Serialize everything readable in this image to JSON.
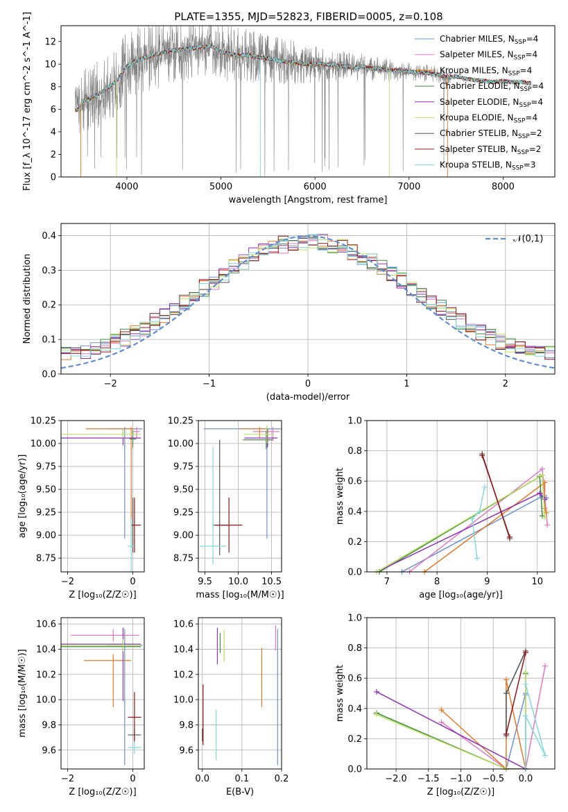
{
  "figure": {
    "title": "PLATE=1355, MJD=52823, FIBERID=0005, z=0.108"
  },
  "colors": {
    "Chabrier MILES": "#6a8fd8",
    "Salpeter MILES": "#e377c2",
    "Kroupa MILES": "#e87722",
    "Chabrier ELODIE": "#3e8a3e",
    "Salpeter ELODIE": "#8e2fb8",
    "Kroupa ELODIE": "#b8e05a",
    "Chabrier STELIB": "#505050",
    "Salpeter STELIB": "#9b1111",
    "Kroupa STELIB": "#7fd8de",
    "normal": "#5b8ed6",
    "grid": "#b0b0b0",
    "data": "#808080"
  },
  "chart_data": [
    {
      "id": "spectrum",
      "type": "line",
      "xlabel": "wavelength [Angstrom, rest frame]",
      "ylabel": "Flux [f_λ 10^-17 erg cm^-2 s^-1 A^-1]",
      "xlim": [
        3300,
        8550
      ],
      "ylim": [
        0,
        13.4
      ],
      "xticks": [
        4000,
        5000,
        6000,
        7000,
        8000
      ],
      "yticks": [
        0,
        2,
        4,
        6,
        8,
        10,
        12
      ],
      "grid": false,
      "legend_position": "right",
      "legend": [
        {
          "label": "Chabrier MILES, N_SSP=4",
          "color_key": "Chabrier MILES"
        },
        {
          "label": "Salpeter MILES, N_SSP=4",
          "color_key": "Salpeter MILES"
        },
        {
          "label": "Kroupa MILES, N_SSP=4",
          "color_key": "Kroupa MILES"
        },
        {
          "label": "Chabrier ELODIE, N_SSP=4",
          "color_key": "Chabrier ELODIE"
        },
        {
          "label": "Salpeter ELODIE, N_SSP=4",
          "color_key": "Salpeter ELODIE"
        },
        {
          "label": "Kroupa ELODIE, N_SSP=4",
          "color_key": "Kroupa ELODIE"
        },
        {
          "label": "Chabrier STELIB, N_SSP=2",
          "color_key": "Chabrier STELIB"
        },
        {
          "label": "Salpeter STELIB, N_SSP=2",
          "color_key": "Salpeter STELIB"
        },
        {
          "label": "Kroupa STELIB, N_SSP=3",
          "color_key": "Kroupa STELIB"
        }
      ],
      "continuum": {
        "x": [
          3450,
          3600,
          3750,
          3900,
          4000,
          4100,
          4200,
          4300,
          4400,
          4500,
          4600,
          4700,
          4800,
          4900,
          5000,
          5100,
          5200,
          5300,
          5400,
          5500,
          5600,
          5700,
          5800,
          5900,
          6000,
          6100,
          6200,
          6300,
          6400,
          6500,
          6600,
          6700,
          6800,
          6900,
          7000,
          7100,
          7200,
          7300,
          7400,
          7500,
          7600,
          7700,
          7800,
          7900,
          8000,
          8100,
          8200,
          8300
        ],
        "y": [
          6.5,
          6.9,
          7.6,
          8.6,
          9.8,
          10.3,
          10.6,
          10.8,
          11.1,
          11.2,
          11.3,
          11.4,
          11.5,
          11.6,
          11.1,
          10.9,
          10.8,
          10.8,
          10.6,
          10.5,
          10.3,
          10.2,
          10.1,
          10.0,
          10.0,
          10.0,
          9.9,
          9.8,
          9.7,
          9.8,
          9.6,
          9.6,
          9.4,
          9.5,
          9.3,
          9.3,
          9.2,
          9.1,
          8.8,
          8.9,
          8.7,
          8.6,
          8.5,
          8.4,
          8.5,
          8.4,
          8.4,
          8.3
        ]
      },
      "noise_amplitude": {
        "x": [
          3450,
          3900,
          4500,
          5000,
          5600,
          6000,
          6500,
          7000,
          7400
        ],
        "y": [
          3.0,
          3.2,
          3.0,
          2.6,
          2.2,
          1.6,
          1.2,
          0.9,
          0.7
        ]
      }
    },
    {
      "id": "residual_hist",
      "type": "line",
      "xlabel": "(data-model)/error",
      "ylabel": "Normed distribution",
      "xlim": [
        -2.5,
        2.5
      ],
      "ylim": [
        0,
        0.435
      ],
      "xticks": [
        -2,
        -1,
        0,
        1,
        2
      ],
      "yticks": [
        0.0,
        0.1,
        0.2,
        0.3,
        0.4
      ],
      "grid": true,
      "legend_position": "top-right",
      "legend_label": "𝒩(0,1)",
      "bin_width": 0.1
    },
    {
      "id": "age_vs_Z",
      "type": "scatter",
      "xlabel": "Z [log₁₀(Z/Z☉)]",
      "ylabel": "age  [log₁₀(age/yr)]",
      "xlim": [
        -2.2,
        0.35
      ],
      "ylim": [
        8.6,
        10.25
      ],
      "xticks": [
        -2,
        0
      ],
      "yticks": [
        8.75,
        9.0,
        9.25,
        9.5,
        9.75,
        10.0,
        10.25
      ],
      "grid": true,
      "points": [
        {
          "model": "Chabrier MILES",
          "x": -0.25,
          "y": 10.16,
          "xerr": [
            0.55,
            0.55
          ],
          "yerr": [
            1.2,
            0.02
          ]
        },
        {
          "model": "Salpeter MILES",
          "x": 0.12,
          "y": 10.13,
          "xerr": [
            0.1,
            0.1
          ],
          "yerr": [
            0.08,
            0.05
          ]
        },
        {
          "model": "Kroupa MILES",
          "x": -0.05,
          "y": 10.16,
          "xerr": [
            1.4,
            0.1
          ],
          "yerr": [
            1.3,
            0.02
          ]
        },
        {
          "model": "Chabrier ELODIE",
          "x": 0.0,
          "y": 10.05,
          "xerr": [
            0.1,
            0.1
          ],
          "yerr": [
            0.1,
            0.1
          ]
        },
        {
          "model": "Salpeter ELODIE",
          "x": -0.3,
          "y": 10.06,
          "xerr": [
            1.9,
            0.55
          ],
          "yerr": [
            0.08,
            0.1
          ]
        },
        {
          "model": "Kroupa ELODIE",
          "x": -0.3,
          "y": 10.1,
          "xerr": [
            1.95,
            0.55
          ],
          "yerr": [
            0.04,
            0.06
          ]
        },
        {
          "model": "Chabrier STELIB",
          "x": 0.0,
          "y": 9.11,
          "xerr": [
            0.05,
            0.05
          ],
          "yerr": [
            0.3,
            0.3
          ]
        },
        {
          "model": "Salpeter STELIB",
          "x": 0.05,
          "y": 9.11,
          "xerr": [
            0.1,
            0.2
          ],
          "yerr": [
            0.3,
            0.3
          ]
        },
        {
          "model": "Kroupa STELIB",
          "x": -0.05,
          "y": 8.88,
          "xerr": [
            0.1,
            0.1
          ],
          "yerr": [
            0.3,
            0.3
          ]
        }
      ]
    },
    {
      "id": "age_vs_mass",
      "type": "scatter",
      "xlabel": "mass [log₁₀(M/M☉)]",
      "ylabel": "",
      "xlim": [
        9.4,
        10.65
      ],
      "ylim": [
        8.6,
        10.25
      ],
      "xticks": [
        9.5,
        10.0,
        10.5
      ],
      "yticks": [
        8.75,
        9.0,
        9.25,
        9.5,
        9.75,
        10.0,
        10.25
      ],
      "grid": true,
      "points": [
        {
          "model": "Chabrier MILES",
          "x": 10.43,
          "y": 10.16,
          "xerr": [
            0.95,
            0.3
          ],
          "yerr": [
            1.2,
            0.02
          ]
        },
        {
          "model": "Salpeter MILES",
          "x": 10.52,
          "y": 10.13,
          "xerr": [
            0.3,
            0.1
          ],
          "yerr": [
            0.1,
            0.05
          ]
        },
        {
          "model": "Kroupa MILES",
          "x": 10.32,
          "y": 10.16,
          "xerr": [
            0.3,
            0.1
          ],
          "yerr": [
            0.1,
            0.02
          ]
        },
        {
          "model": "Chabrier ELODIE",
          "x": 10.42,
          "y": 10.04,
          "xerr": [
            0.35,
            0.1
          ],
          "yerr": [
            0.1,
            0.1
          ]
        },
        {
          "model": "Salpeter ELODIE",
          "x": 10.44,
          "y": 10.06,
          "xerr": [
            0.35,
            0.15
          ],
          "yerr": [
            0.1,
            0.1
          ]
        },
        {
          "model": "Kroupa ELODIE",
          "x": 10.43,
          "y": 10.1,
          "xerr": [
            0.35,
            0.1
          ],
          "yerr": [
            0.1,
            0.1
          ]
        },
        {
          "model": "Chabrier STELIB",
          "x": 9.72,
          "y": 9.11,
          "xerr": [
            0.1,
            0.15
          ],
          "yerr": [
            0.33,
            0.93
          ]
        },
        {
          "model": "Salpeter STELIB",
          "x": 9.86,
          "y": 9.11,
          "xerr": [
            0.2,
            0.2
          ],
          "yerr": [
            0.3,
            0.3
          ]
        },
        {
          "model": "Kroupa STELIB",
          "x": 9.62,
          "y": 8.88,
          "xerr": [
            0.2,
            0.2
          ],
          "yerr": [
            0.2,
            1.08
          ]
        }
      ]
    },
    {
      "id": "weight_vs_age",
      "type": "line",
      "xlabel": "age  [log₁₀(age/yr)]",
      "ylabel": "mass weight",
      "xlim": [
        6.6,
        10.35
      ],
      "ylim": [
        0,
        1.0
      ],
      "xticks": [
        7,
        8,
        9,
        10
      ],
      "yticks": [
        0.0,
        0.2,
        0.4,
        0.6,
        0.8,
        1.0
      ],
      "grid": true,
      "series": [
        {
          "model": "Chabrier MILES",
          "x": [
            7.3,
            10.1,
            10.18
          ],
          "y": [
            0.0,
            0.5,
            0.49
          ]
        },
        {
          "model": "Salpeter MILES",
          "x": [
            7.45,
            10.1,
            10.2
          ],
          "y": [
            0.0,
            0.68,
            0.31
          ]
        },
        {
          "model": "Kroupa MILES",
          "x": [
            7.75,
            10.15,
            10.15,
            10.18
          ],
          "y": [
            0.0,
            0.59,
            0.42,
            0.39
          ]
        },
        {
          "model": "Chabrier ELODIE",
          "x": [
            6.85,
            10.05,
            10.1
          ],
          "y": [
            0.0,
            0.63,
            0.37
          ]
        },
        {
          "model": "Salpeter ELODIE",
          "x": [
            6.8,
            10.05,
            10.15
          ],
          "y": [
            0.0,
            0.52,
            0.48
          ]
        },
        {
          "model": "Kroupa ELODIE",
          "x": [
            6.8,
            10.1,
            10.15
          ],
          "y": [
            0.0,
            0.64,
            0.36
          ]
        },
        {
          "model": "Chabrier STELIB",
          "x": [
            8.9,
            9.45
          ],
          "y": [
            0.78,
            0.22
          ]
        },
        {
          "model": "Salpeter STELIB",
          "x": [
            8.9,
            9.45
          ],
          "y": [
            0.77,
            0.23
          ]
        },
        {
          "model": "Kroupa STELIB",
          "x": [
            8.8,
            8.7,
            8.85,
            8.95
          ],
          "y": [
            0.09,
            0.35,
            0.4,
            0.56
          ]
        }
      ]
    },
    {
      "id": "mass_vs_Z",
      "type": "scatter",
      "xlabel": "Z [log₁₀(Z/Z☉)]",
      "ylabel": "mass [log₁₀(M/M☉)]",
      "xlim": [
        -2.2,
        0.35
      ],
      "ylim": [
        9.45,
        10.65
      ],
      "xticks": [
        -2,
        0
      ],
      "yticks": [
        9.6,
        9.8,
        10.0,
        10.2,
        10.4,
        10.6
      ],
      "grid": true,
      "points": [
        {
          "model": "Chabrier MILES",
          "x": -0.25,
          "y": 10.43,
          "xerr": [
            0.55,
            0.55
          ],
          "yerr": [
            0.95,
            0.13
          ]
        },
        {
          "model": "Salpeter MILES",
          "x": -0.6,
          "y": 10.51,
          "xerr": [
            1.3,
            0.8
          ],
          "yerr": [
            0.05,
            0.05
          ]
        },
        {
          "model": "Kroupa MILES",
          "x": -0.6,
          "y": 10.31,
          "xerr": [
            0.9,
            0.55
          ],
          "yerr": [
            0.37,
            0.05
          ]
        },
        {
          "model": "Chabrier ELODIE",
          "x": -0.3,
          "y": 10.42,
          "xerr": [
            1.9,
            0.55
          ],
          "yerr": [
            0.05,
            0.05
          ]
        },
        {
          "model": "Salpeter ELODIE",
          "x": -0.3,
          "y": 10.44,
          "xerr": [
            1.9,
            0.55
          ],
          "yerr": [
            0.45,
            0.13
          ]
        },
        {
          "model": "Kroupa ELODIE",
          "x": -0.3,
          "y": 10.43,
          "xerr": [
            1.95,
            0.55
          ],
          "yerr": [
            0.05,
            0.05
          ]
        },
        {
          "model": "Chabrier STELIB",
          "x": 0.05,
          "y": 9.72,
          "xerr": [
            0.2,
            0.2
          ],
          "yerr": [
            0.05,
            0.05
          ]
        },
        {
          "model": "Salpeter STELIB",
          "x": 0.05,
          "y": 9.86,
          "xerr": [
            0.2,
            0.2
          ],
          "yerr": [
            0.2,
            0.2
          ]
        },
        {
          "model": "Kroupa STELIB",
          "x": 0.05,
          "y": 9.62,
          "xerr": [
            0.2,
            0.2
          ],
          "yerr": [
            0.05,
            0.05
          ]
        }
      ]
    },
    {
      "id": "mass_vs_EBV",
      "type": "scatter",
      "xlabel": "E(B-V)",
      "ylabel": "",
      "xlim": [
        -0.01,
        0.2
      ],
      "ylim": [
        9.45,
        10.65
      ],
      "xticks": [
        0.0,
        0.1,
        0.2
      ],
      "yticks": [
        9.6,
        9.8,
        10.0,
        10.2,
        10.4,
        10.6
      ],
      "grid": true,
      "points": [
        {
          "model": "Chabrier MILES",
          "x": 0.19,
          "y": 10.43,
          "xerr": [
            0,
            0
          ],
          "yerr": [
            0.95,
            0.13
          ]
        },
        {
          "model": "Salpeter MILES",
          "x": 0.185,
          "y": 10.51,
          "xerr": [
            0,
            0
          ],
          "yerr": [
            0.12,
            0.08
          ]
        },
        {
          "model": "Kroupa MILES",
          "x": 0.15,
          "y": 10.31,
          "xerr": [
            0,
            0
          ],
          "yerr": [
            0.37,
            0.1
          ]
        },
        {
          "model": "Chabrier ELODIE",
          "x": 0.045,
          "y": 10.42,
          "xerr": [
            0,
            0
          ],
          "yerr": [
            0.05,
            0.11
          ]
        },
        {
          "model": "Salpeter ELODIE",
          "x": 0.038,
          "y": 10.44,
          "xerr": [
            0,
            0
          ],
          "yerr": [
            0.16,
            0.13
          ]
        },
        {
          "model": "Kroupa ELODIE",
          "x": 0.055,
          "y": 10.43,
          "xerr": [
            0,
            0
          ],
          "yerr": [
            0.13,
            0.12
          ]
        },
        {
          "model": "Chabrier STELIB",
          "x": 0.0,
          "y": 9.72,
          "xerr": [
            0,
            0
          ],
          "yerr": [
            0.05,
            0.05
          ]
        },
        {
          "model": "Salpeter STELIB",
          "x": 0.002,
          "y": 9.86,
          "xerr": [
            0,
            0
          ],
          "yerr": [
            0.22,
            0.26
          ]
        },
        {
          "model": "Kroupa STELIB",
          "x": 0.035,
          "y": 9.72,
          "xerr": [
            0,
            0
          ],
          "yerr": [
            0.2,
            0.2
          ]
        }
      ]
    },
    {
      "id": "weight_vs_Z",
      "type": "line",
      "xlabel": "Z [log₁₀(Z/Z☉)]",
      "ylabel": "mass weight",
      "xlim": [
        -2.45,
        0.45
      ],
      "ylim": [
        0,
        1.0
      ],
      "xticks": [
        -2.0,
        -1.5,
        -1.0,
        -0.5,
        0.0
      ],
      "yticks": [
        0.0,
        0.2,
        0.4,
        0.6,
        0.8,
        1.0
      ],
      "grid": true,
      "series": [
        {
          "model": "Chabrier MILES",
          "x": [
            -0.3,
            0.0,
            0.0
          ],
          "y": [
            0.0,
            0.5,
            0.49
          ]
        },
        {
          "model": "Salpeter MILES",
          "x": [
            -1.3,
            -0.3,
            0.0,
            0.3
          ],
          "y": [
            0.31,
            0.0,
            0.0,
            0.68
          ]
        },
        {
          "model": "Kroupa MILES",
          "x": [
            -1.3,
            -0.3,
            -0.3,
            0.0
          ],
          "y": [
            0.39,
            0.0,
            0.59,
            0.0
          ]
        },
        {
          "model": "Chabrier ELODIE",
          "x": [
            -2.3,
            -0.3,
            0.0,
            0.0
          ],
          "y": [
            0.37,
            0.0,
            0.0,
            0.63
          ]
        },
        {
          "model": "Salpeter ELODIE",
          "x": [
            -2.3,
            0.0,
            -0.3
          ],
          "y": [
            0.51,
            0.0,
            0.0
          ]
        },
        {
          "model": "Kroupa ELODIE",
          "x": [
            -2.3,
            -0.3,
            0.0,
            0.0
          ],
          "y": [
            0.36,
            0.0,
            0.0,
            0.64
          ]
        },
        {
          "model": "Chabrier STELIB",
          "x": [
            -0.3,
            -0.3,
            0.0
          ],
          "y": [
            0.22,
            0.5,
            0.78
          ]
        },
        {
          "model": "Salpeter STELIB",
          "x": [
            -0.3,
            0.0,
            -0.3
          ],
          "y": [
            0.23,
            0.77,
            0.23
          ]
        },
        {
          "model": "Kroupa STELIB",
          "x": [
            0.0,
            0.3,
            0.0,
            0.0
          ],
          "y": [
            0.56,
            0.09,
            0.35,
            0.0
          ]
        }
      ]
    }
  ]
}
